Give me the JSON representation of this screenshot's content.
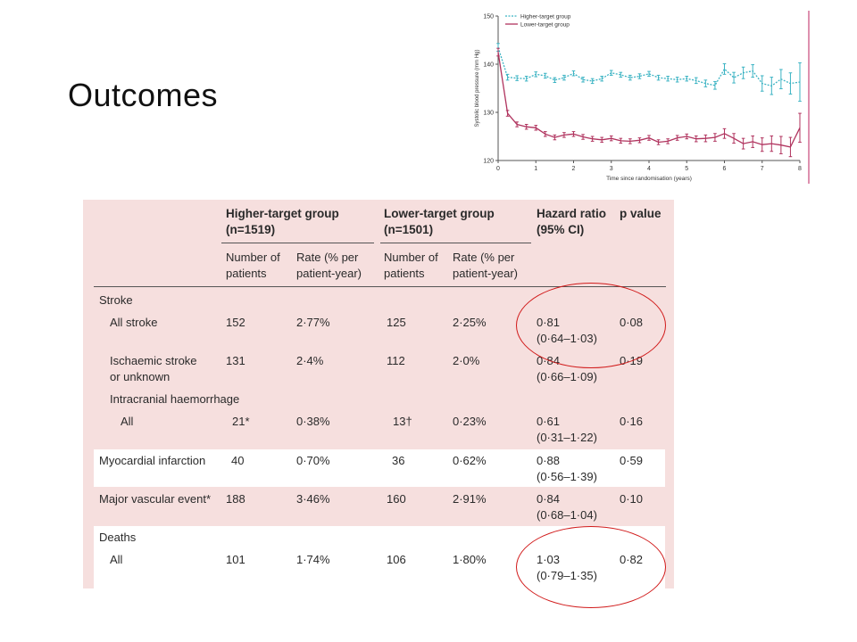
{
  "title": "Outcomes",
  "chart_data": {
    "type": "line",
    "ylabel": "Systolic blood pressure (mm Hg)",
    "xlabel": "Time since randomisation (years)",
    "ylim": [
      120,
      150
    ],
    "xlim": [
      0,
      8
    ],
    "yticks": [
      "120",
      "130",
      "140",
      "150"
    ],
    "xticks": [
      "0",
      "1",
      "2",
      "3",
      "4",
      "5",
      "6",
      "7",
      "8"
    ],
    "legend": "top-left",
    "x": [
      0,
      0.25,
      0.5,
      0.75,
      1,
      1.25,
      1.5,
      1.75,
      2,
      2.25,
      2.5,
      2.75,
      3,
      3.25,
      3.5,
      3.75,
      4,
      4.25,
      4.5,
      4.75,
      5,
      5.25,
      5.5,
      5.75,
      6,
      6.25,
      6.5,
      6.75,
      7,
      7.25,
      7.5,
      7.75,
      8
    ],
    "series": [
      {
        "name": "Higher-target group",
        "color": "#3bb3c3",
        "style": "dashed",
        "values": [
          143.5,
          137.3,
          137.1,
          137.0,
          137.9,
          137.6,
          136.7,
          137.2,
          138.1,
          136.8,
          136.5,
          137.0,
          138.2,
          137.8,
          137.2,
          137.5,
          138.0,
          137.2,
          137.0,
          136.8,
          137.0,
          136.6,
          136.0,
          135.6,
          139.0,
          137.2,
          138.2,
          138.6,
          136.0,
          135.5,
          136.9,
          136.0,
          136.3
        ],
        "error": [
          0.8,
          0.6,
          0.5,
          0.5,
          0.5,
          0.5,
          0.5,
          0.5,
          0.5,
          0.5,
          0.5,
          0.5,
          0.5,
          0.5,
          0.5,
          0.5,
          0.5,
          0.5,
          0.5,
          0.5,
          0.5,
          0.6,
          0.7,
          0.8,
          1.1,
          1.1,
          1.2,
          1.3,
          1.6,
          1.8,
          2.0,
          2.2,
          4.0
        ]
      },
      {
        "name": "Lower-target group",
        "color": "#b0335e",
        "style": "solid",
        "values": [
          142.5,
          129.8,
          127.5,
          127.0,
          126.8,
          125.5,
          124.8,
          125.3,
          125.5,
          124.9,
          124.5,
          124.3,
          124.6,
          124.1,
          124.0,
          124.2,
          124.7,
          123.8,
          124.0,
          124.7,
          125.0,
          124.5,
          124.6,
          124.8,
          125.6,
          124.6,
          123.5,
          123.9,
          123.3,
          123.5,
          123.2,
          122.8,
          126.8
        ],
        "error": [
          0.8,
          0.6,
          0.5,
          0.5,
          0.5,
          0.5,
          0.5,
          0.5,
          0.5,
          0.5,
          0.5,
          0.5,
          0.5,
          0.5,
          0.5,
          0.5,
          0.5,
          0.5,
          0.5,
          0.5,
          0.5,
          0.6,
          0.7,
          0.8,
          1.0,
          1.0,
          1.1,
          1.2,
          1.4,
          1.6,
          1.8,
          2.0,
          3.0
        ]
      }
    ]
  },
  "table": {
    "header": {
      "higher": "Higher-target group",
      "higher_n": "(n=1519)",
      "lower": "Lower-target group",
      "lower_n": "(n=1501)",
      "hr": "Hazard ratio",
      "hr_ci": "(95% CI)",
      "p": "p value",
      "num1": "Number of",
      "num2": "patients",
      "rate1": "Rate (% per",
      "rate2": "patient-year)"
    },
    "stroke": {
      "label": "Stroke",
      "all_stroke": {
        "label": "All stroke",
        "hn": "152",
        "hr": "2·77%",
        "ln": "125",
        "lr": "2·25%",
        "hz": "0·81",
        "ci": "(0·64–1·03)",
        "p": "0·08"
      },
      "ischaemic": {
        "label1": "Ischaemic stroke",
        "label2": "or unknown",
        "hn": "131",
        "hr": "2·4%",
        "ln": "112",
        "lr": "2·0%",
        "hz": "0·84",
        "ci": "(0·66–1·09)",
        "p": "0·19"
      },
      "ich_label": "Intracranial haemorrhage",
      "ich_all": {
        "label": "All",
        "hn": "21*",
        "hr": "0·38%",
        "ln": "13†",
        "lr": "0·23%",
        "hz": "0·61",
        "ci": "(0·31–1·22)",
        "p": "0·16"
      }
    },
    "mi": {
      "label": "Myocardial infarction",
      "hn": "40",
      "hr": "0·70%",
      "ln": "36",
      "lr": "0·62%",
      "hz": "0·88",
      "ci": "(0·56–1·39)",
      "p": "0·59"
    },
    "mve": {
      "label": "Major vascular event*",
      "hn": "188",
      "hr": "3·46%",
      "ln": "160",
      "lr": "2·91%",
      "hz": "0·84",
      "ci": "(0·68–1·04)",
      "p": "0·10"
    },
    "deaths": {
      "label": "Deaths",
      "all": {
        "label": "All",
        "hn": "101",
        "hr": "1·74%",
        "ln": "106",
        "lr": "1·80%",
        "hz": "1·03",
        "ci": "(0·79–1·35)",
        "p": "0·82"
      }
    }
  }
}
